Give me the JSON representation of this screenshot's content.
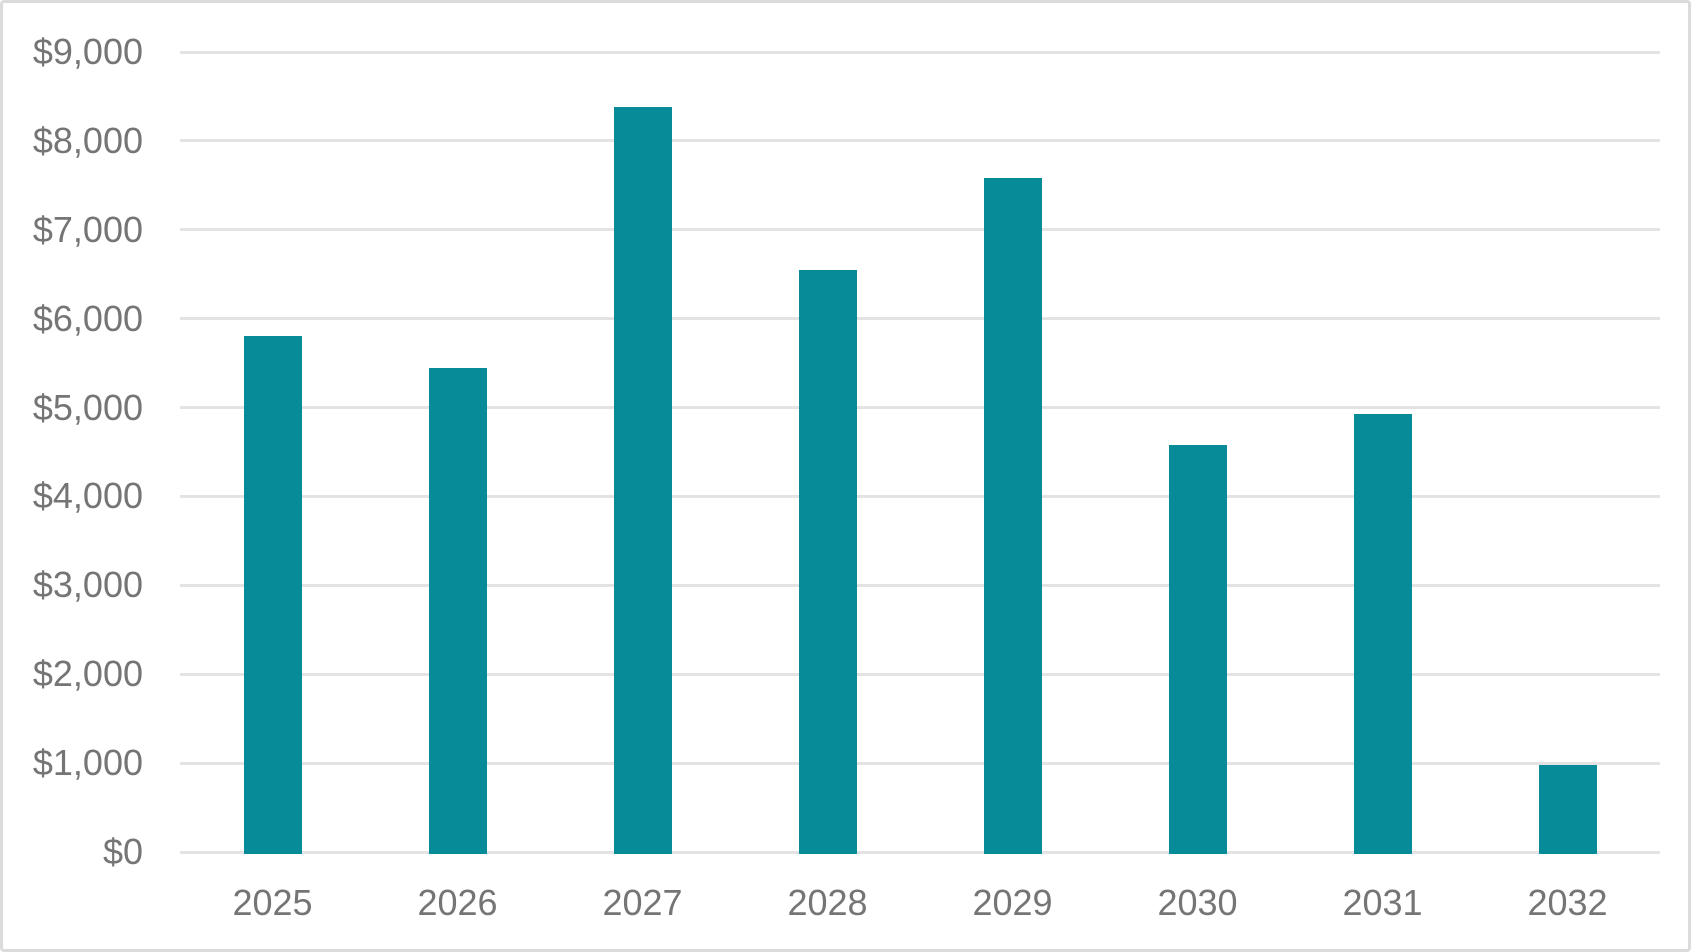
{
  "chart_data": {
    "type": "bar",
    "title": "",
    "xlabel": "",
    "ylabel": "",
    "categories": [
      "2025",
      "2026",
      "2027",
      "2028",
      "2029",
      "2030",
      "2031",
      "2032"
    ],
    "values": [
      5830,
      5470,
      8400,
      6570,
      7610,
      4600,
      4950,
      1000
    ],
    "ylim": [
      0,
      9000
    ],
    "ytick_step": 1000,
    "ytick_labels": [
      "$0",
      "$1,000",
      "$2,000",
      "$3,000",
      "$4,000",
      "$5,000",
      "$6,000",
      "$7,000",
      "$8,000",
      "$9,000"
    ],
    "grid": true,
    "legend": false,
    "colors": {
      "bar": "#078B99",
      "gridline": "#E3E3E3",
      "axis_label": "#757575",
      "background": "#FFFFFF",
      "frame_border": "#DBDBDB"
    }
  }
}
